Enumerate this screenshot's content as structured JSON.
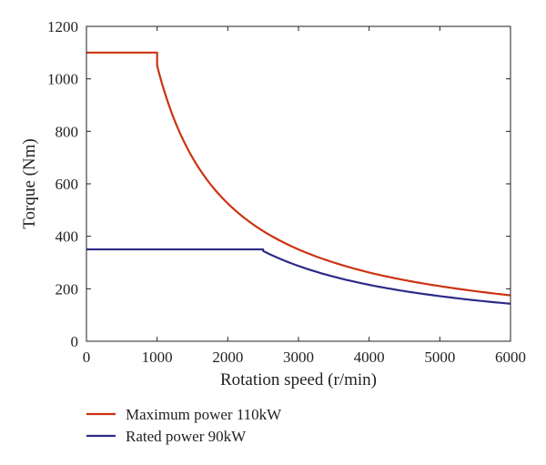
{
  "chart_data": {
    "type": "line",
    "xlabel": "Rotation speed (r/min)",
    "ylabel": "Torque (Nm)",
    "xlim": [
      0,
      6000
    ],
    "ylim": [
      0,
      1200
    ],
    "xticks": [
      0,
      1000,
      2000,
      3000,
      4000,
      5000,
      6000
    ],
    "yticks": [
      0,
      200,
      400,
      600,
      800,
      1000,
      1200
    ],
    "grid": false,
    "legend_position": "bottom",
    "series": [
      {
        "name": "Maximum power 110kW",
        "color": "#cc3311",
        "x": [
          0,
          1000,
          1000,
          1250,
          1500,
          1750,
          2000,
          2500,
          3000,
          3500,
          4000,
          4500,
          5000,
          5500,
          6000
        ],
        "y": [
          1100,
          1100,
          1050,
          840,
          700,
          600,
          525,
          420,
          350,
          300,
          262,
          233,
          210,
          191,
          175
        ]
      },
      {
        "name": "Rated power 90kW",
        "color": "#2e2b86",
        "x": [
          0,
          2500,
          2500,
          3000,
          3500,
          4000,
          4500,
          5000,
          5500,
          6000
        ],
        "y": [
          350,
          350,
          344,
          287,
          246,
          215,
          191,
          172,
          156,
          143
        ]
      }
    ]
  }
}
